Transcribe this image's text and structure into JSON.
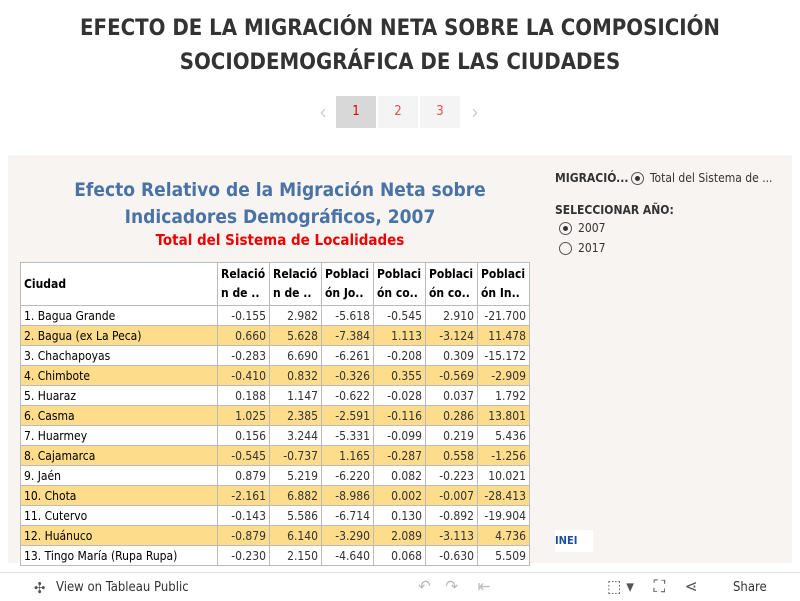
{
  "header": {
    "title": "EFECTO DE LA MIGRACIÓN NETA SOBRE LA COMPOSICIÓN SOCIODEMOGRÁFICA DE LAS CIUDADES"
  },
  "pagination": {
    "pages": [
      "1",
      "2",
      "3"
    ],
    "current": "1"
  },
  "panel": {
    "title": "Efecto Relativo de la Migración Neta sobre Indicadores Demográficos, 2007",
    "subtitle": "Total del Sistema de Localidades"
  },
  "table": {
    "columns": [
      "Ciudad",
      "Relación de ..",
      "Relación de ..",
      "Población Jo..",
      "Población co..",
      "Población co..",
      "Población In.."
    ],
    "rows": [
      [
        "1. Bagua Grande",
        "-0.155",
        "2.982",
        "-5.618",
        "-0.545",
        "2.910",
        "-21.700"
      ],
      [
        "2. Bagua (ex La Peca)",
        "0.660",
        "5.628",
        "-7.384",
        "1.113",
        "-3.124",
        "11.478"
      ],
      [
        "3. Chachapoyas",
        "-0.283",
        "6.690",
        "-6.261",
        "-0.208",
        "0.309",
        "-15.172"
      ],
      [
        "4. Chimbote",
        "-0.410",
        "0.832",
        "-0.326",
        "0.355",
        "-0.569",
        "-2.909"
      ],
      [
        "5. Huaraz",
        "0.188",
        "1.147",
        "-0.622",
        "-0.028",
        "0.037",
        "1.792"
      ],
      [
        "6. Casma",
        "1.025",
        "2.385",
        "-2.591",
        "-0.116",
        "0.286",
        "13.801"
      ],
      [
        "7. Huarmey",
        "0.156",
        "3.244",
        "-5.331",
        "-0.099",
        "0.219",
        "5.436"
      ],
      [
        "8. Cajamarca",
        "-0.545",
        "-0.737",
        "1.165",
        "-0.287",
        "0.558",
        "-1.256"
      ],
      [
        "9. Jaén",
        "0.879",
        "5.219",
        "-6.220",
        "0.082",
        "-0.223",
        "10.021"
      ],
      [
        "10. Chota",
        "-2.161",
        "6.882",
        "-8.986",
        "0.002",
        "-0.007",
        "-28.413"
      ],
      [
        "11. Cutervo",
        "-0.143",
        "5.586",
        "-6.714",
        "0.130",
        "-0.892",
        "-19.904"
      ],
      [
        "12. Huánuco",
        "-0.879",
        "6.140",
        "-3.290",
        "2.089",
        "-3.113",
        "4.736"
      ],
      [
        "13. Tingo María (Rupa Rupa)",
        "-0.230",
        "2.150",
        "-4.640",
        "0.068",
        "-0.630",
        "5.509"
      ]
    ]
  },
  "filters": {
    "migration": {
      "label": "MIGRACIÓ...",
      "option": "Total del Sistema de ..."
    },
    "year": {
      "label": "SELECCIONAR AÑO:",
      "options": [
        "2007",
        "2017"
      ],
      "selected": "2007"
    }
  },
  "logo": "INEI",
  "footer": {
    "view": "View on Tableau Public",
    "share": "Share"
  }
}
